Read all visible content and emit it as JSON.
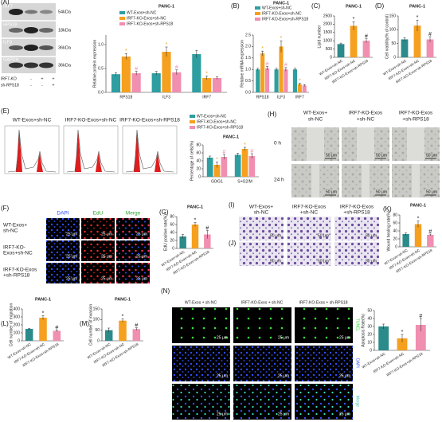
{
  "blot": {
    "panel": "(A)",
    "bands": [
      {
        "name": "IRF7",
        "size": "54kDa"
      },
      {
        "name": "RPS18",
        "size": "18kDa"
      },
      {
        "name": "ILF3",
        "size": "36kDa"
      },
      {
        "name": "GAPDH",
        "size": "36kDa"
      }
    ],
    "rows": [
      {
        "name": "IRF7-KO",
        "signs": [
          "-",
          "+",
          "+"
        ]
      },
      {
        "name": "sh-RPS18",
        "signs": [
          "-",
          "-",
          "+"
        ]
      }
    ]
  },
  "flow": {
    "panel": "(E)",
    "titles": [
      "WT-Exos+sh-NC",
      "IRF7-KO-Exos+sh-NC",
      "IRF7-KO-Exos+sh-RPS18"
    ]
  },
  "wound": {
    "panel": "(H)",
    "columns": [
      [
        "WT-Exos+",
        "sh-NC"
      ],
      [
        "IRF7-KO-Exos",
        "+sh-NC"
      ],
      [
        "IRF7-KO-Exos",
        "+sh-RPS18"
      ]
    ],
    "rows": [
      "0 h",
      "24 h"
    ],
    "scale": "50 μm"
  },
  "edu": {
    "panel": "(F)",
    "columns": [
      "DAPI",
      "EdU",
      "Merge"
    ],
    "rows": [
      [
        "WT-Exos+",
        "sh-NC"
      ],
      [
        "IRF7-KO-",
        "Exos+sh-NC"
      ],
      [
        "IRF7-KO-Exos",
        "+sh-RPS18"
      ]
    ],
    "scale": "25 μm"
  },
  "transwell": {
    "panels": [
      "(I)",
      "(J)"
    ],
    "columns": [
      [
        "WT-Exos+",
        "sh-NC"
      ],
      [
        "IRF7-KO-Exos",
        "+sh-NC"
      ],
      [
        "IRF7-KO-Exos",
        "+sh-RPS18"
      ]
    ],
    "scale": "50 μm"
  },
  "tunel": {
    "panel": "(N)",
    "columns": [
      "WT-Exos + sh-NC",
      "IRF7-KO-Exos + sh-NC",
      "IRF7-KO-Exos + sh-RPS18"
    ],
    "rows": [
      "TUNEL",
      "DAPI",
      "Merge"
    ],
    "scale": "25 μm"
  },
  "chart_data": [
    {
      "type": "bar",
      "title": "PANC-1",
      "ylabel": "Relative protein expression",
      "categories": [
        "RPS18",
        "ILF3",
        "IRF7"
      ],
      "series": [
        {
          "name": "WT-Exos+sh-NC",
          "color": "#2e9ea0",
          "values": [
            0.38,
            0.4,
            0.8
          ],
          "errors": [
            0.03,
            0.04,
            0.08
          ],
          "sig": [
            null,
            null,
            null
          ]
        },
        {
          "name": "IRF7-KO-Exos+sh-NC",
          "color": "#f5a01f",
          "values": [
            0.75,
            0.85,
            0.3
          ],
          "errors": [
            0.06,
            0.1,
            0.04
          ],
          "sig": [
            "*",
            "*",
            "*"
          ]
        },
        {
          "name": "IRF7-KO-Exos+sh-RPS18",
          "color": "#f08fb0",
          "values": [
            0.4,
            0.42,
            0.3
          ],
          "errors": [
            0.04,
            0.05,
            0.03
          ],
          "sig": [
            "#",
            "#",
            null
          ]
        }
      ],
      "ylim": [
        0,
        1.2
      ],
      "yticks": [
        {
          "value": 0,
          "label": "0.0"
        },
        {
          "value": 0.5,
          "label": "0.5"
        },
        {
          "value": 1,
          "label": "1.0"
        }
      ]
    },
    {
      "type": "bar",
      "panel": "(B)",
      "title": "PANC-1",
      "ylabel": "Relative mRNA expression",
      "categories": [
        "RPS18",
        "ILF3",
        "IRF7"
      ],
      "series": [
        {
          "name": "WT-Exos+sh-NC",
          "color": "#2e9ea0",
          "values": [
            1.0,
            1.0,
            1.0
          ],
          "errors": [
            0.05,
            0.05,
            0.05
          ],
          "sig": [
            null,
            null,
            null
          ]
        },
        {
          "name": "IRF7-KO-Exos+sh-NC",
          "color": "#f5a01f",
          "values": [
            1.7,
            2.0,
            0.35
          ],
          "errors": [
            0.1,
            0.25,
            0.05
          ],
          "sig": [
            "*",
            "*",
            "*"
          ]
        },
        {
          "name": "IRF7-KO-Exos+sh-RPS18",
          "color": "#f08fb0",
          "values": [
            1.05,
            1.0,
            0.3
          ],
          "errors": [
            0.08,
            0.08,
            0.04
          ],
          "sig": [
            "#",
            "#",
            null
          ]
        }
      ],
      "ylim": [
        0,
        2.5
      ],
      "yticks": [
        {
          "value": 0,
          "label": "0.0"
        },
        {
          "value": 0.5,
          "label": "0.5"
        },
        {
          "value": 1,
          "label": "1.0"
        },
        {
          "value": 1.5,
          "label": "1.5"
        },
        {
          "value": 2,
          "label": "2.0"
        },
        {
          "value": 2.5,
          "label": "2.5"
        }
      ]
    },
    {
      "type": "bar",
      "panel": "(C)",
      "title": "PANC-1",
      "ylabel": "Lipid number",
      "categories": [
        "WT-Exos+sh-NC",
        "IRF7-KO-Exos+sh-NC",
        "IRF7-KO-Exos+sh-RPS18"
      ],
      "values": [
        800,
        1900,
        1000
      ],
      "errors": [
        60,
        250,
        120
      ],
      "colors": [
        "#2b8a8a",
        "#f5a01f",
        "#f08fb0"
      ],
      "sig": [
        null,
        "*",
        "#"
      ],
      "ylim": [
        0,
        2500
      ],
      "yticks": [
        0,
        500,
        1000,
        1500,
        2000,
        2500
      ]
    },
    {
      "type": "bar",
      "panel": "(D)",
      "title": "PANC-1",
      "ylabel": "Cell viability(% of control)",
      "categories": [
        "WT-Exos+sh-NC",
        "IRF7-KO-Exos+sh-NC",
        "IRF7-KO-Exos+sh-RPS18"
      ],
      "values": [
        65,
        115,
        65
      ],
      "errors": [
        6,
        20,
        10
      ],
      "colors": [
        "#2b8a8a",
        "#f5a01f",
        "#f08fb0"
      ],
      "sig": [
        null,
        "*",
        "#"
      ],
      "ylim": [
        0,
        150
      ],
      "yticks": [
        0,
        50,
        100,
        150
      ]
    },
    {
      "type": "bar",
      "title": "PANC-1",
      "ylabel": "Percentage of cells(%)",
      "categories": [
        "G0/G1",
        "S+G2/M"
      ],
      "series": [
        {
          "name": "WT-Exos+sh-NC",
          "color": "#2e9ea0",
          "values": [
            48,
            55
          ],
          "errors": [
            4,
            4
          ],
          "sig": [
            null,
            null
          ]
        },
        {
          "name": "IRF7-KO-Exos+sh-NC",
          "color": "#f5a01f",
          "values": [
            30,
            70
          ],
          "errors": [
            7,
            4
          ],
          "sig": [
            "*",
            "*"
          ]
        },
        {
          "name": "IRF7-KO-Exos+sh-RPS18",
          "color": "#f08fb0",
          "values": [
            50,
            52
          ],
          "errors": [
            6,
            6
          ],
          "sig": [
            "#",
            "#"
          ]
        }
      ],
      "ylim": [
        0,
        80
      ],
      "yticks": [
        0,
        20,
        40,
        60,
        80
      ]
    },
    {
      "type": "bar",
      "panel": "(G)",
      "title": "PANC-1",
      "ylabel": "EdU positive rate(%)",
      "categories": [
        "WT-Exos+sh-NC",
        "IRF7-KO-Exos+sh-NC",
        "IRF7-KO-Exos+sh-RPS18"
      ],
      "values": [
        30,
        60,
        35
      ],
      "errors": [
        5,
        5,
        10
      ],
      "colors": [
        "#2b8a8a",
        "#f5a01f",
        "#f08fb0"
      ],
      "sig": [
        null,
        "*",
        "#"
      ],
      "ylim": [
        0,
        80
      ],
      "yticks": [
        0,
        20,
        40,
        60,
        80
      ]
    },
    {
      "type": "bar",
      "panel": "(K)",
      "title": "PANC-1",
      "ylabel": "Wound healing rate(%)",
      "categories": [
        "WT-Exos+sh-NC",
        "IRF7-KO-Exos+sh-NC",
        "IRF7-KO-Exos+sh-RPS18"
      ],
      "values": [
        32,
        57,
        30
      ],
      "errors": [
        3,
        8,
        2
      ],
      "colors": [
        "#2b8a8a",
        "#f5a01f",
        "#f08fb0"
      ],
      "sig": [
        null,
        "*",
        "#"
      ],
      "ylim": [
        0,
        80
      ],
      "yticks": [
        0,
        20,
        40,
        60,
        80
      ]
    },
    {
      "type": "bar",
      "panel": "(L)",
      "title": "PANC-1",
      "ylabel": "Cell number of migration",
      "categories": [
        "WT-Exos+sh-NC",
        "IRF7-KO-Exos+sh-NC",
        "IRF7-KO-Exos+sh-RPS18"
      ],
      "values": [
        150,
        290,
        125
      ],
      "errors": [
        8,
        25,
        10
      ],
      "colors": [
        "#2b8a8a",
        "#f5a01f",
        "#f08fb0"
      ],
      "sig": [
        null,
        "*",
        "#"
      ],
      "ylim": [
        0,
        400
      ],
      "yticks": [
        0,
        100,
        200,
        300,
        400
      ]
    },
    {
      "type": "bar",
      "panel": "(M)",
      "title": "PANC-1",
      "ylabel": "Cell number of invasion",
      "categories": [
        "WT-Exos+sh-NC",
        "IRF7-KO-Exos+sh-NC",
        "IRF7-KO-Exos+sh-RPS18"
      ],
      "values": [
        50,
        95,
        55
      ],
      "errors": [
        10,
        8,
        6
      ],
      "colors": [
        "#2b8a8a",
        "#f5a01f",
        "#f08fb0"
      ],
      "sig": [
        null,
        "*",
        "#"
      ],
      "ylim": [
        0,
        150
      ],
      "yticks": [
        0,
        50,
        100,
        150
      ]
    },
    {
      "type": "bar",
      "ylabel": "Apoptosis Rate(%)",
      "categories": [
        "WT-Exos+sh-NC",
        "IRF7-KO-Exos+sh-NC",
        "IRF7-KO-Exos+sh-RPS18"
      ],
      "values": [
        30,
        15,
        32
      ],
      "errors": [
        3,
        5,
        8
      ],
      "colors": [
        "#2b8a8a",
        "#f5a01f",
        "#f08fb0"
      ],
      "sig": [
        null,
        "*",
        "#"
      ],
      "ylim": [
        0,
        50
      ],
      "yticks": [
        0,
        10,
        20,
        30,
        40,
        50
      ]
    }
  ]
}
